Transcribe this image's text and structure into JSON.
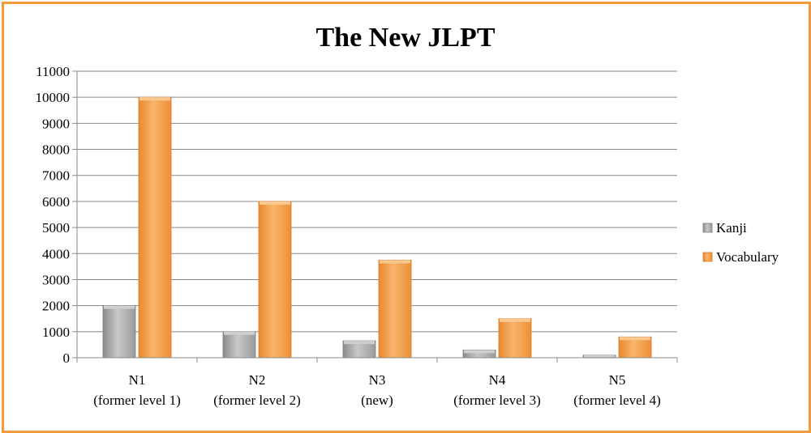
{
  "chart_data": {
    "type": "bar",
    "title": "The New JLPT",
    "xlabel": "",
    "ylabel": "",
    "ylim": [
      0,
      11000
    ],
    "yticks": [
      0,
      1000,
      2000,
      3000,
      4000,
      5000,
      6000,
      7000,
      8000,
      9000,
      10000,
      11000
    ],
    "grid": true,
    "legend_position": "right",
    "categories": [
      [
        "N1",
        "(former level 1)"
      ],
      [
        "N2",
        "(former level 2)"
      ],
      [
        "N3",
        "(new)"
      ],
      [
        "N4",
        "(former level 3)"
      ],
      [
        "N5",
        "(former level 4)"
      ]
    ],
    "series": [
      {
        "name": "Kanji",
        "values": [
          2000,
          1000,
          650,
          300,
          100
        ],
        "color": "#a9a9a9"
      },
      {
        "name": "Vocabulary",
        "values": [
          10000,
          6000,
          3750,
          1500,
          800
        ],
        "color": "#f5a04a"
      }
    ]
  }
}
